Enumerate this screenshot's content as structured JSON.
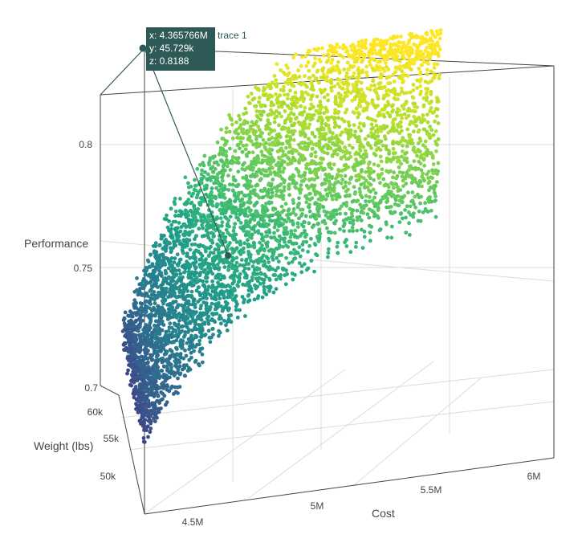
{
  "chart_data": {
    "type": "scatter3d",
    "title": "",
    "colorscale": "viridis",
    "axes": {
      "x": {
        "title": "Cost",
        "ticks": [
          "4.5M",
          "5M",
          "5.5M",
          "6M"
        ],
        "range": [
          4.3,
          6.05
        ]
      },
      "y": {
        "title": "Weight (lbs)",
        "ticks": [
          "50k",
          "55k",
          "60k"
        ],
        "range": [
          45,
          63
        ]
      },
      "z": {
        "title": "Performance",
        "ticks": [
          "0.7",
          "0.75",
          "0.8"
        ],
        "range": [
          0.7,
          0.825
        ]
      }
    },
    "grid": true,
    "hover": {
      "x_label": "x: 4.365766M",
      "y_label": "y: 45.729k",
      "z_label": "z: 0.8188",
      "trace": "trace 1",
      "bg_color": "#2d5a57"
    },
    "point_count": 5000
  }
}
